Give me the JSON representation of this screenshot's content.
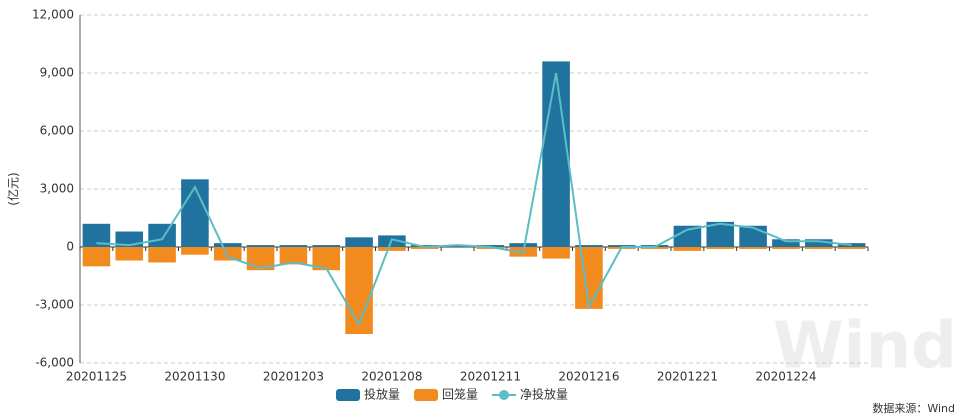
{
  "chart_data": {
    "type": "bar",
    "y_label": "(亿元)",
    "source": "数据来源：Wind",
    "watermark": "Wind",
    "categories": [
      "20201125",
      null,
      null,
      "20201130",
      null,
      null,
      "20201203",
      null,
      null,
      "20201208",
      null,
      null,
      "20201211",
      null,
      null,
      "20201216",
      null,
      null,
      "20201221",
      null,
      null,
      "20201224",
      null,
      null
    ],
    "series": [
      {
        "name": "投放量",
        "type": "bar",
        "color": "#21739f",
        "values": [
          1200,
          800,
          1200,
          3500,
          200,
          100,
          100,
          100,
          500,
          600,
          100,
          100,
          100,
          200,
          9600,
          100,
          100,
          100,
          1100,
          1300,
          1100,
          400,
          400,
          200
        ]
      },
      {
        "name": "回笼量",
        "type": "bar",
        "color": "#f28b1e",
        "values": [
          -1000,
          -700,
          -800,
          -400,
          -700,
          -1200,
          -900,
          -1200,
          -4500,
          -200,
          -100,
          0,
          -100,
          -500,
          -600,
          -3200,
          -100,
          -100,
          -200,
          -100,
          -100,
          -100,
          -100,
          -100
        ]
      },
      {
        "name": "净投放量",
        "type": "line",
        "color": "#5bbdc5",
        "values": [
          200,
          100,
          400,
          3100,
          -500,
          -1100,
          -800,
          -1100,
          -4000,
          400,
          0,
          100,
          0,
          -300,
          9000,
          -3100,
          0,
          0,
          900,
          1200,
          1000,
          300,
          300,
          100
        ]
      }
    ],
    "ylim": [
      -6000,
      12000
    ],
    "yticks": [
      {
        "value": -6000,
        "label": "-6,000"
      },
      {
        "value": -3000,
        "label": "-3,000"
      },
      0,
      {
        "value": 3000,
        "label": "3,000"
      },
      {
        "value": 6000,
        "label": "6,000"
      },
      {
        "value": 9000,
        "label": "9,000"
      },
      {
        "value": 12000,
        "label": "12,000"
      }
    ],
    "grid": true
  }
}
